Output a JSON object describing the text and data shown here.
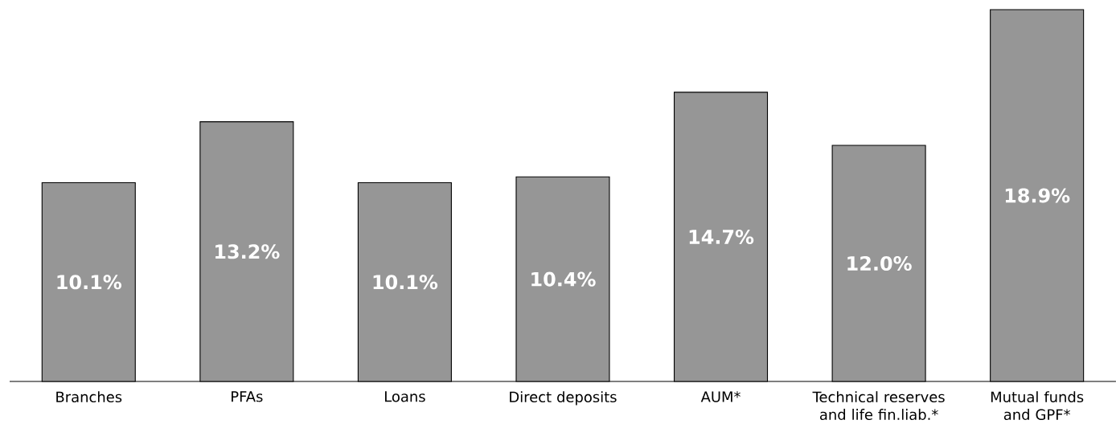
{
  "chart_data": {
    "type": "bar",
    "categories": [
      "Branches",
      "PFAs",
      "Loans",
      "Direct deposits",
      "AUM*",
      "Technical reserves and life fin.liab.*",
      "Mutual funds and GPF*"
    ],
    "values": [
      10.1,
      13.2,
      10.1,
      10.4,
      14.7,
      12.0,
      18.9
    ],
    "value_labels": [
      "10.1%",
      "13.2%",
      "10.1%",
      "10.4%",
      "14.7%",
      "12.0%",
      "18.9%"
    ],
    "color": "#969696"
  }
}
